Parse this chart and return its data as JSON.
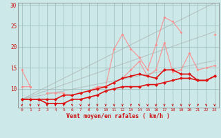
{
  "x": [
    0,
    1,
    2,
    3,
    4,
    5,
    6,
    7,
    8,
    9,
    10,
    11,
    12,
    13,
    14,
    15,
    16,
    17,
    18,
    19,
    20,
    21,
    22,
    23
  ],
  "gray_lines": [
    [
      7.5,
      7.9,
      8.3,
      8.7,
      9.1,
      9.5,
      9.9,
      10.3,
      10.7,
      11.1,
      11.5,
      11.9,
      12.3,
      12.7,
      13.1,
      13.5,
      13.9,
      14.3,
      14.7,
      15.1,
      15.5,
      15.9,
      16.3,
      16.7
    ],
    [
      7.5,
      8.2,
      8.9,
      9.6,
      10.3,
      11.0,
      11.7,
      12.4,
      13.1,
      13.8,
      14.5,
      15.2,
      15.9,
      16.6,
      17.3,
      18.0,
      18.7,
      19.4,
      20.1,
      20.8,
      21.5,
      22.2,
      22.9,
      23.6
    ],
    [
      7.5,
      8.5,
      9.5,
      10.5,
      11.5,
      12.5,
      13.5,
      14.5,
      15.5,
      16.5,
      17.5,
      18.5,
      19.5,
      20.5,
      21.5,
      22.5,
      23.5,
      24.5,
      25.5,
      26.5,
      27.5,
      28.5,
      29.5,
      30.5
    ]
  ],
  "pink_line1": [
    14.5,
    10.5,
    null,
    null,
    null,
    null,
    null,
    null,
    null,
    null,
    null,
    null,
    null,
    null,
    null,
    null,
    null,
    null,
    null,
    null,
    null,
    null,
    null,
    null
  ],
  "pink_line2": [
    10.5,
    10.5,
    null,
    9.0,
    9.0,
    9.0,
    null,
    null,
    9.5,
    10.5,
    10.5,
    19.5,
    23.0,
    19.5,
    17.5,
    14.5,
    20.5,
    27.0,
    26.0,
    23.5,
    null,
    null,
    null,
    23.0
  ],
  "pink_line3": [
    null,
    null,
    null,
    null,
    null,
    null,
    null,
    null,
    null,
    null,
    null,
    null,
    12.5,
    14.5,
    16.5,
    13.0,
    14.5,
    21.0,
    14.0,
    14.5,
    18.5,
    14.5,
    15.0,
    15.5
  ],
  "red_upper": [
    7.5,
    7.5,
    7.5,
    7.5,
    7.5,
    8.5,
    8.5,
    9.0,
    9.5,
    10.0,
    10.5,
    11.5,
    12.5,
    13.0,
    13.5,
    13.0,
    12.5,
    14.5,
    14.5,
    13.5,
    13.5,
    12.0,
    12.0,
    13.0
  ],
  "red_lower": [
    7.5,
    7.5,
    7.5,
    6.5,
    6.5,
    6.5,
    7.5,
    7.5,
    8.0,
    8.5,
    9.5,
    10.0,
    10.5,
    10.5,
    10.5,
    11.0,
    11.0,
    11.5,
    12.0,
    12.5,
    12.5,
    12.0,
    12.0,
    13.0
  ],
  "xlabel": "Vent moyen/en rafales ( km/h )",
  "xlim": [
    -0.5,
    23.5
  ],
  "ylim": [
    5.5,
    30.5
  ],
  "yticks": [
    10,
    15,
    20,
    25,
    30
  ],
  "xticks": [
    0,
    1,
    2,
    3,
    4,
    5,
    6,
    7,
    8,
    9,
    10,
    11,
    12,
    13,
    14,
    15,
    16,
    17,
    18,
    19,
    20,
    21,
    22,
    23
  ],
  "bg_color": "#cce8e8",
  "grid_color": "#99bbbb",
  "pink_color": "#ff8888",
  "red_color": "#dd1111",
  "gray_color": "#aaaaaa",
  "arrow_color": "#cc1111",
  "figsize": [
    3.2,
    2.0
  ],
  "dpi": 100
}
